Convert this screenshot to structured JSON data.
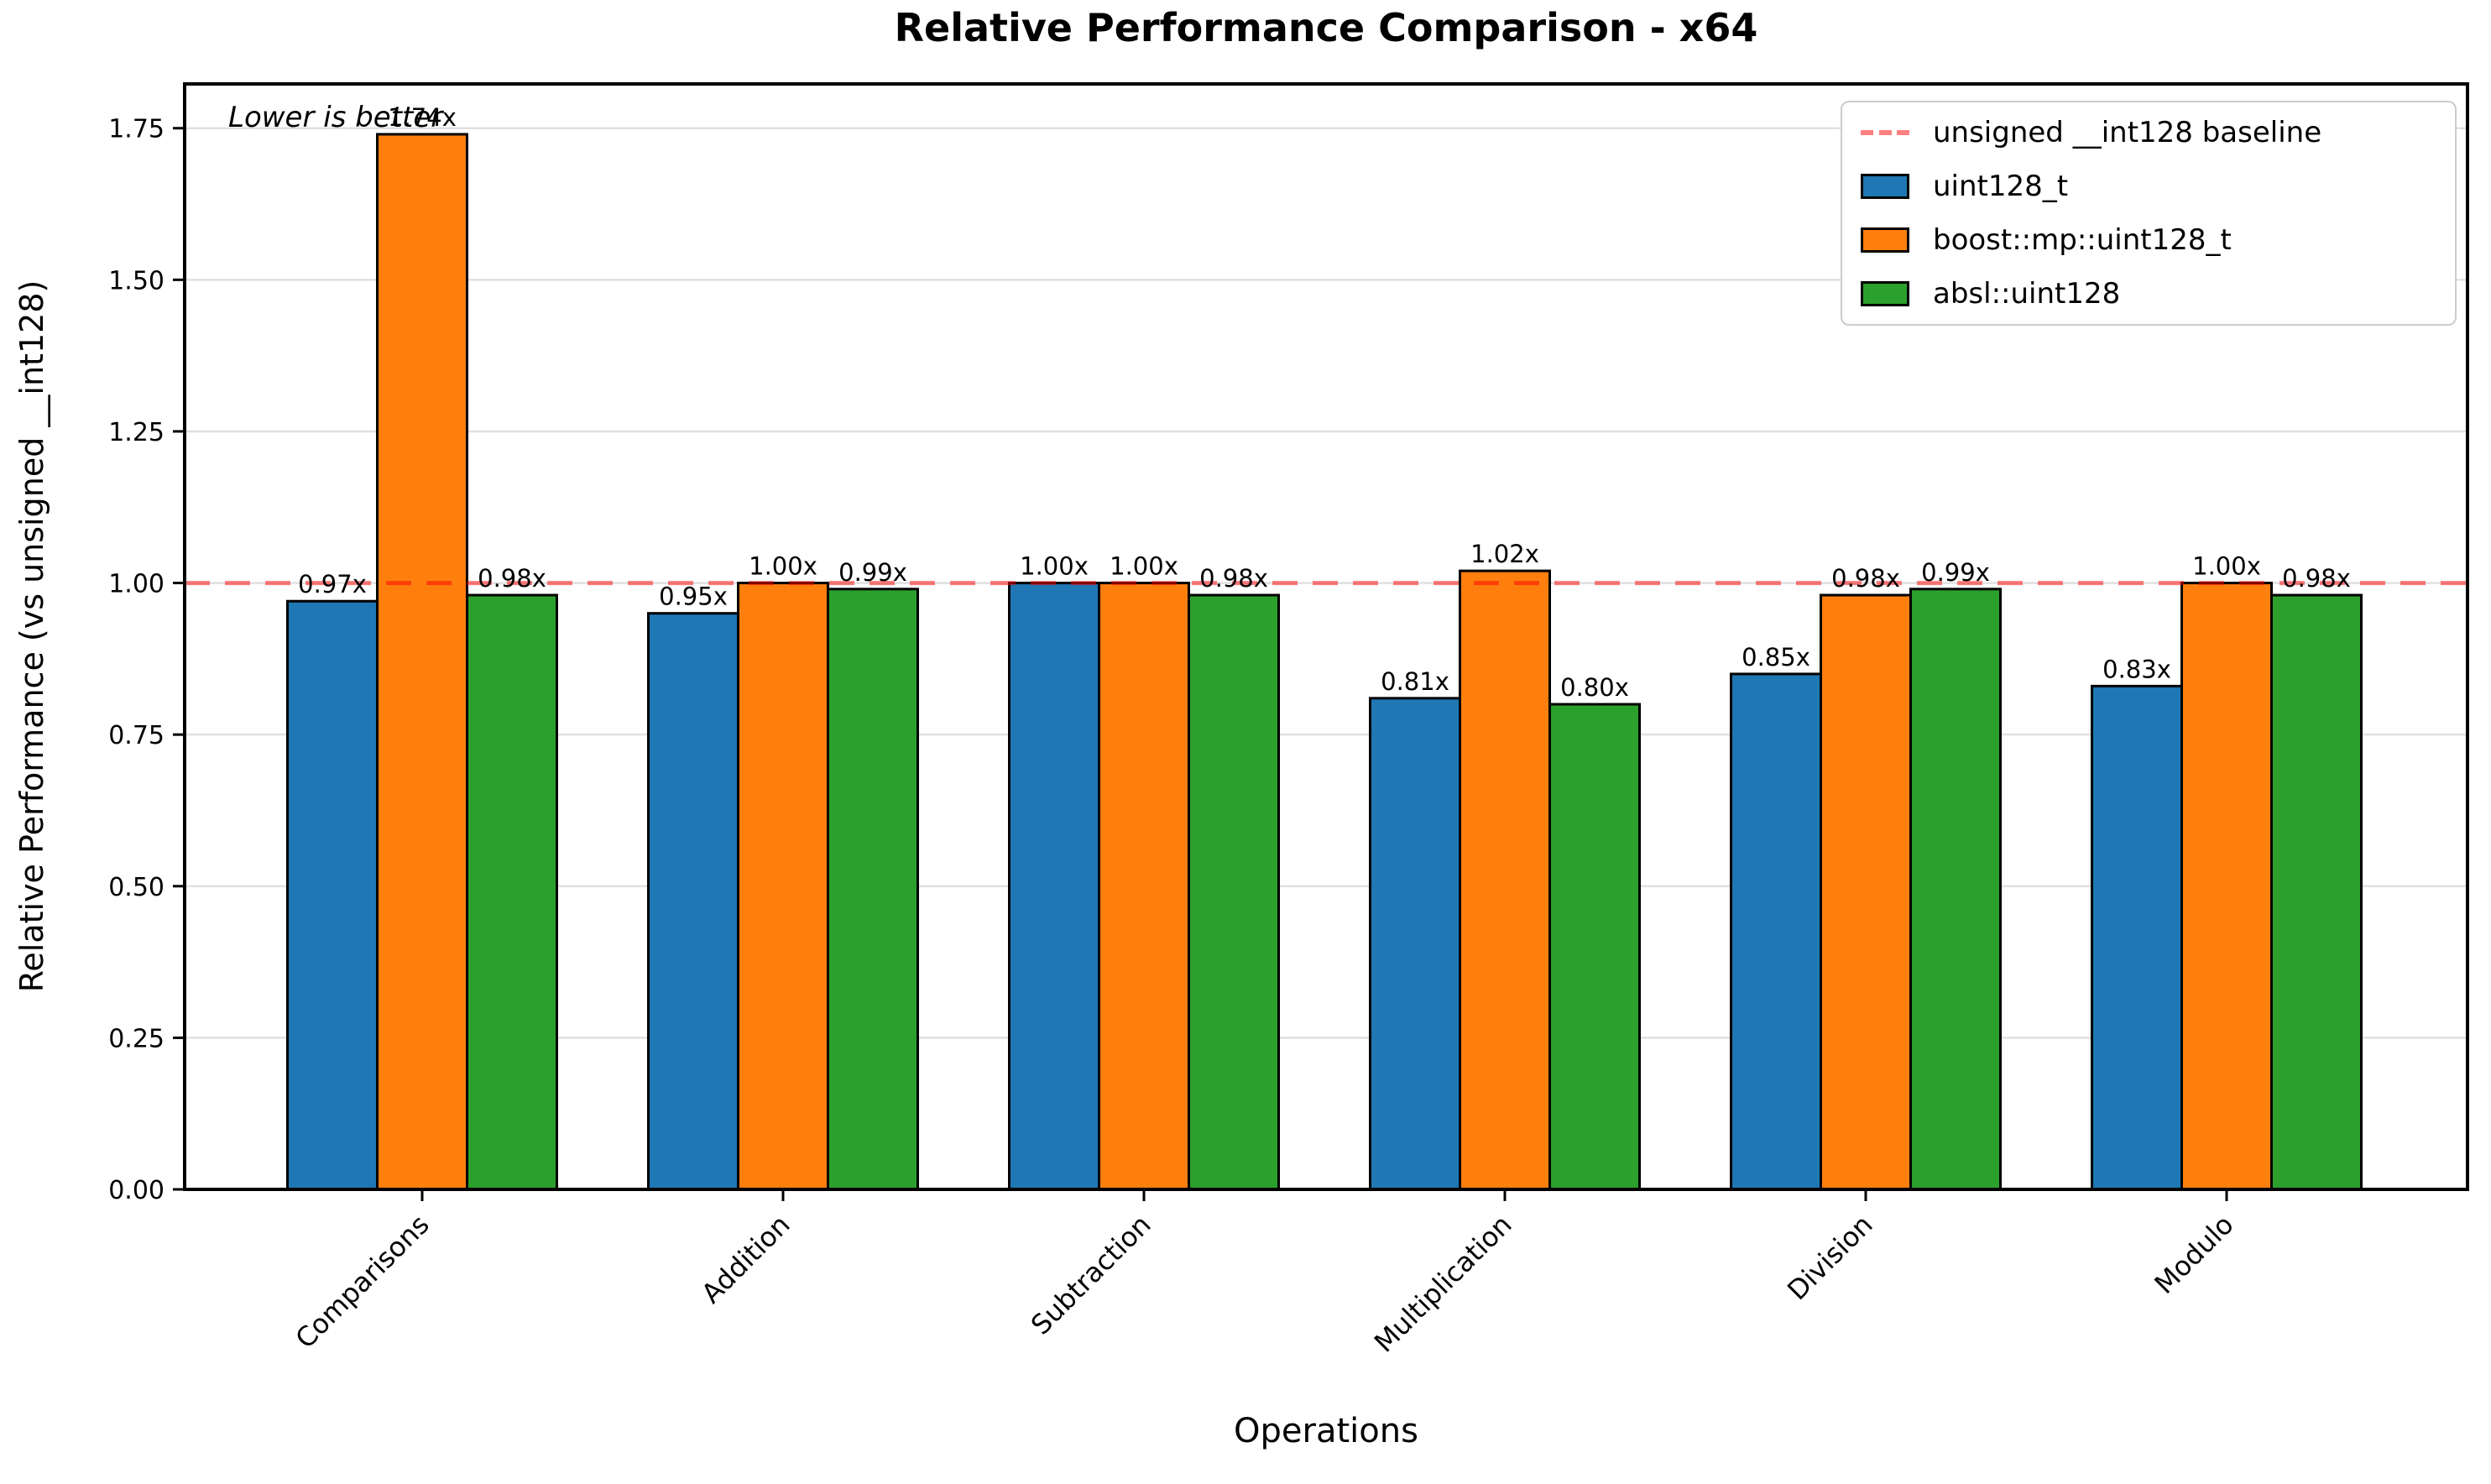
{
  "chart_data": {
    "type": "bar",
    "title": "Relative Performance Comparison - x64",
    "xlabel": "Operations",
    "ylabel": "Relative Performance (vs unsigned __int128)",
    "annotation": "Lower is better",
    "categories": [
      "Comparisons",
      "Addition",
      "Subtraction",
      "Multiplication",
      "Division",
      "Modulo"
    ],
    "series": [
      {
        "name": "uint128_t",
        "color": "#1f77b4",
        "values": [
          0.97,
          0.95,
          1.0,
          0.81,
          0.85,
          0.83
        ],
        "bar_labels": [
          "0.97x",
          "0.95x",
          "1.00x",
          "0.81x",
          "0.85x",
          "0.83x"
        ]
      },
      {
        "name": "boost::mp::uint128_t",
        "color": "#ff7f0e",
        "values": [
          1.74,
          1.0,
          1.0,
          1.02,
          0.98,
          1.0
        ],
        "bar_labels": [
          "1.74x",
          "1.00x",
          "1.00x",
          "1.02x",
          "0.98x",
          "1.00x"
        ]
      },
      {
        "name": "absl::uint128",
        "color": "#2ca02c",
        "values": [
          0.98,
          0.99,
          0.98,
          0.8,
          0.99,
          0.98
        ],
        "bar_labels": [
          "0.98x",
          "0.99x",
          "0.98x",
          "0.80x",
          "0.99x",
          "0.98x"
        ]
      }
    ],
    "baseline": {
      "value": 1.0,
      "label": "unsigned __int128 baseline",
      "color": "rgba(255,0,0,0.5)"
    },
    "yticks": {
      "values": [
        0,
        0.25,
        0.5,
        0.75,
        1.0,
        1.25,
        1.5,
        1.75
      ],
      "labels": [
        "0.00",
        "0.25",
        "0.50",
        "0.75",
        "1.00",
        "1.25",
        "1.50",
        "1.75"
      ]
    },
    "ylim": [
      0,
      1.82
    ],
    "grid": true,
    "legend_position": "upper right",
    "colors": {
      "bar_edge": "#000000",
      "grid": "#e0e0e0",
      "spine": "#000000",
      "legend_border": "#cccccc"
    }
  }
}
